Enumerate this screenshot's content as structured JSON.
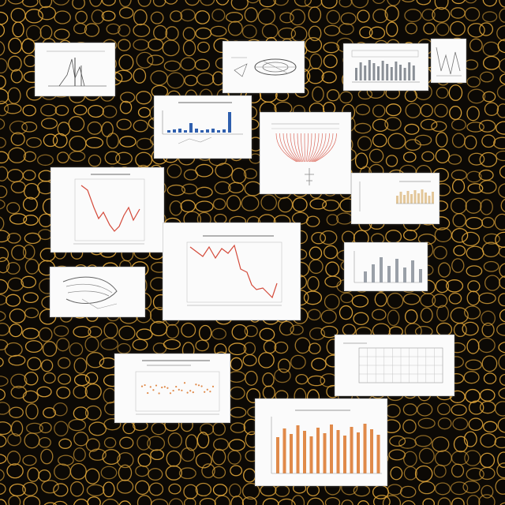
{
  "colors": {
    "background": "#0c0905",
    "cell_glow": "#e0a63a",
    "card_fill": "#fbfbfb",
    "ink_red": "#d44a3a",
    "ink_blue": "#2f5fae",
    "ink_orange": "#e08a4a",
    "ink_gray": "#8a8f96"
  },
  "cards": [
    {
      "name": "card-plot-sketch",
      "kind": "line-sketch"
    },
    {
      "name": "card-mechanical-drawing",
      "kind": "technical-drawing"
    },
    {
      "name": "card-histogram-panel-a",
      "kind": "bar-sketch"
    },
    {
      "name": "card-histogram-panel-b",
      "kind": "bar-sketch"
    },
    {
      "name": "card-blue-bar-chart",
      "kind": "bar-sketch"
    },
    {
      "name": "card-red-dendrogram",
      "kind": "dendrogram"
    },
    {
      "name": "card-red-line-chart-small",
      "kind": "line-sketch"
    },
    {
      "name": "card-tan-bar-chart",
      "kind": "bar-sketch"
    },
    {
      "name": "card-red-line-chart-large",
      "kind": "line-sketch"
    },
    {
      "name": "card-gray-bar-chart",
      "kind": "bar-sketch"
    },
    {
      "name": "card-wing-drawing",
      "kind": "technical-drawing"
    },
    {
      "name": "card-grid-chart",
      "kind": "grid-sketch"
    },
    {
      "name": "card-scatter-chart",
      "kind": "scatter-sketch"
    },
    {
      "name": "card-orange-bar-chart",
      "kind": "bar-sketch"
    }
  ]
}
